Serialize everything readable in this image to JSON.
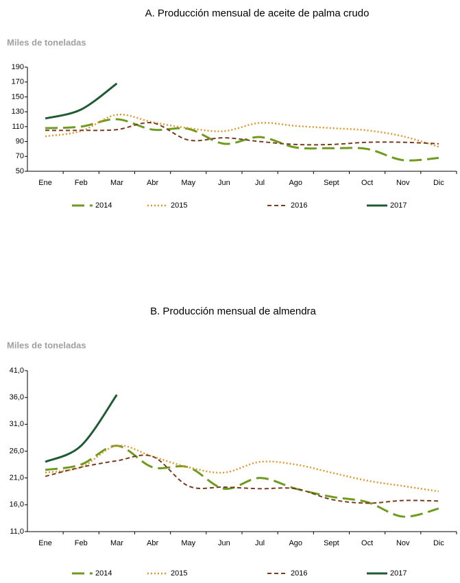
{
  "chart_data": [
    {
      "type": "line",
      "title": "A. Producción mensual de aceite de palma crudo",
      "y_label": "Miles de toneladas",
      "categories": [
        "Ene",
        "Feb",
        "Mar",
        "Abr",
        "May",
        "Jun",
        "Jul",
        "Ago",
        "Sept",
        "Oct",
        "Nov",
        "Dic"
      ],
      "ylim": [
        50,
        190
      ],
      "yticks": [
        50,
        70,
        90,
        110,
        130,
        150,
        170,
        190
      ],
      "legend": "bottom",
      "series": [
        {
          "name": "2014",
          "color": "#6e9a1e",
          "style": "dashed",
          "values": [
            108,
            110,
            120,
            106,
            107,
            87,
            96,
            82,
            81,
            80,
            65,
            68
          ]
        },
        {
          "name": "2015",
          "color": "#e0962a",
          "style": "dotted",
          "values": [
            97,
            104,
            126,
            116,
            108,
            104,
            115,
            111,
            108,
            105,
            97,
            83
          ]
        },
        {
          "name": "2016",
          "color": "#7a3a1e",
          "style": "short-dashed",
          "values": [
            105,
            105,
            106,
            115,
            92,
            95,
            90,
            86,
            86,
            89,
            89,
            87
          ]
        },
        {
          "name": "2017",
          "color": "#1e5a32",
          "style": "solid",
          "values": [
            121,
            133,
            168,
            null,
            null,
            null,
            null,
            null,
            null,
            null,
            null,
            null
          ]
        }
      ]
    },
    {
      "type": "line",
      "title": "B. Producción mensual de almendra",
      "y_label": "Miles de toneladas",
      "categories": [
        "Ene",
        "Feb",
        "Mar",
        "Abr",
        "May",
        "Jun",
        "Jul",
        "Ago",
        "Sept",
        "Oct",
        "Nov",
        "Dic"
      ],
      "ylim": [
        11,
        41
      ],
      "yticks": [
        {
          "value": 11,
          "label": "11,0"
        },
        {
          "value": 16,
          "label": "16,0"
        },
        {
          "value": 21,
          "label": "21,0"
        },
        {
          "value": 26,
          "label": "26,0"
        },
        {
          "value": 31,
          "label": "31,0"
        },
        {
          "value": 36,
          "label": "36,0"
        },
        {
          "value": 41,
          "label": "41,0"
        }
      ],
      "legend": "bottom",
      "series": [
        {
          "name": "2014",
          "color": "#6e9a1e",
          "style": "dashed",
          "values": [
            22.5,
            23.5,
            27,
            23,
            23,
            19,
            21,
            19,
            17.5,
            16.5,
            13.8,
            15.3
          ]
        },
        {
          "name": "2015",
          "color": "#e0962a",
          "style": "dotted",
          "values": [
            22,
            23,
            27,
            25,
            23,
            22,
            24,
            23.5,
            22,
            20.5,
            19.5,
            18.5
          ]
        },
        {
          "name": "2016",
          "color": "#7a3a1e",
          "style": "short-dashed",
          "values": [
            21.3,
            23,
            24.2,
            25,
            19.5,
            19.3,
            19,
            19,
            17,
            16.3,
            16.8,
            16.7
          ]
        },
        {
          "name": "2017",
          "color": "#1e5a32",
          "style": "solid",
          "values": [
            24,
            27,
            36.5,
            null,
            null,
            null,
            null,
            null,
            null,
            null,
            null,
            null
          ]
        }
      ]
    }
  ]
}
